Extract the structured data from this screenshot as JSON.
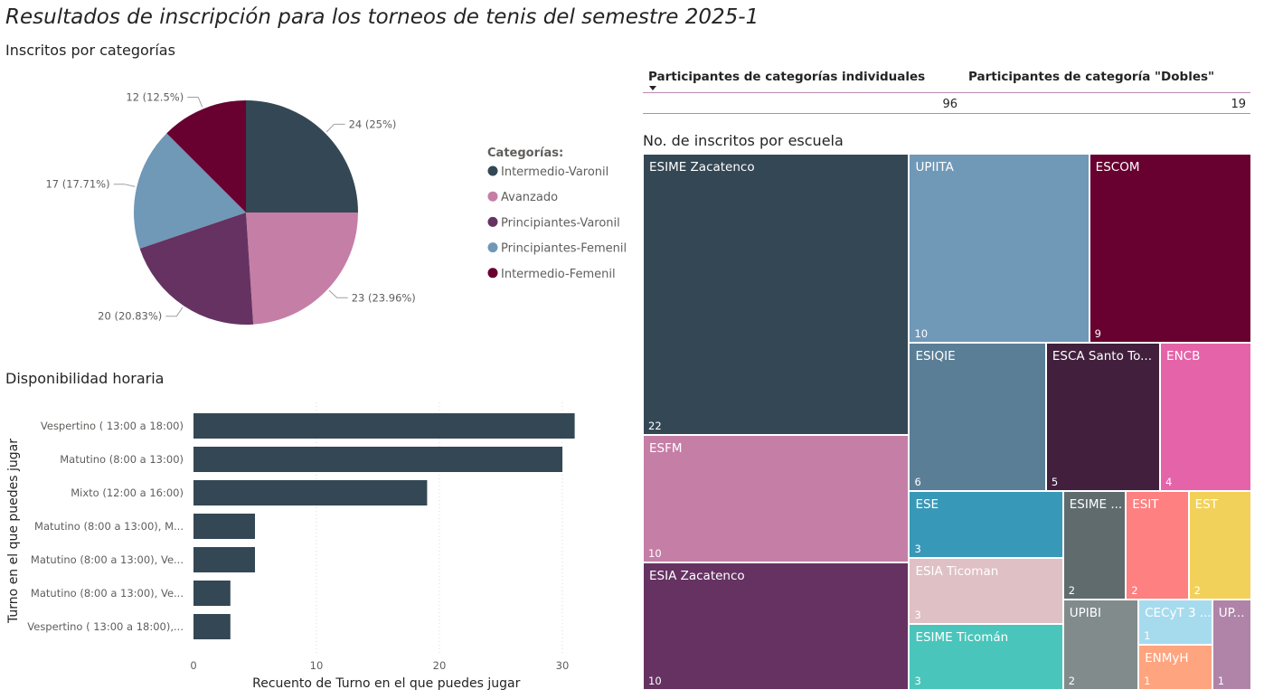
{
  "page": {
    "title": "Resultados de inscripción para los torneos de tenis del semestre 2025-1"
  },
  "cards": {
    "individual_label": "Participantes de categorías individuales",
    "individual_value": "96",
    "dobles_label": "Participantes de categoría \"Dobles\"",
    "dobles_value": "19"
  },
  "chart_data": [
    {
      "type": "pie",
      "title": "Inscritos por categorías",
      "legend_title": "Categorías:",
      "legend_position": "right",
      "slices": [
        {
          "name": "Intermedio-Varonil",
          "value": 24,
          "label": "24 (25%)",
          "color": "#344754"
        },
        {
          "name": "Avanzado",
          "value": 23,
          "label": "23 (23.96%)",
          "color": "#c57ea6"
        },
        {
          "name": "Principiantes-Varonil",
          "value": 20,
          "label": "20 (20.83%)",
          "color": "#653262"
        },
        {
          "name": "Principiantes-Femenil",
          "value": 17,
          "label": "17 (17.71%)",
          "color": "#7098b7"
        },
        {
          "name": "Intermedio-Femenil",
          "value": 12,
          "label": "12 (12.5%)",
          "color": "#680030"
        }
      ]
    },
    {
      "type": "bar",
      "orientation": "horizontal",
      "title": "Disponibilidad horaria",
      "xlabel": "Recuento de Turno en el que puedes jugar",
      "ylabel": "Turno en el que puedes jugar",
      "xlim": [
        0,
        32
      ],
      "xticks": [
        "0",
        "10",
        "20",
        "30"
      ],
      "grid": true,
      "color": "#344754",
      "categories": [
        "Vespertino ( 13:00 a 18:00)",
        "Matutino (8:00 a 13:00)",
        "Mixto (12:00 a 16:00)",
        "Matutino (8:00 a 13:00), M...",
        "Matutino (8:00 a 13:00), Ve...",
        "Matutino (8:00 a 13:00), Ve...",
        "Vespertino ( 13:00 a 18:00),..."
      ],
      "values": [
        31,
        30,
        19,
        5,
        5,
        3,
        3
      ]
    },
    {
      "type": "treemap",
      "title": "No. de inscritos por escuela",
      "items": [
        {
          "name": "ESIME Zacatenco",
          "value": 22,
          "color": "#344754"
        },
        {
          "name": "UPIITA",
          "value": 10,
          "color": "#7098b7"
        },
        {
          "name": "ESCOM",
          "value": 9,
          "color": "#680030"
        },
        {
          "name": "ESFM",
          "value": 10,
          "color": "#c57ea6"
        },
        {
          "name": "ESIQIE",
          "value": 6,
          "color": "#5b7e97"
        },
        {
          "name": "ESCA Santo To...",
          "value": 5,
          "color": "#42203d"
        },
        {
          "name": "ENCB",
          "value": 4,
          "color": "#e563a9"
        },
        {
          "name": "ESIA Zacatenco",
          "value": 10,
          "color": "#653262"
        },
        {
          "name": "ESE",
          "value": 3,
          "color": "#3898b8"
        },
        {
          "name": "ESIME ...",
          "value": 2,
          "color": "#606b6e"
        },
        {
          "name": "ESIT",
          "value": 2,
          "color": "#fe8080"
        },
        {
          "name": "EST",
          "value": 2,
          "color": "#f2d15a"
        },
        {
          "name": "ESIA Ticoman",
          "value": 3,
          "color": "#dfc0c4"
        },
        {
          "name": "UPIBI",
          "value": 2,
          "color": "#818b8c"
        },
        {
          "name": "CECyT 3 ...",
          "value": 1,
          "color": "#a6dbee"
        },
        {
          "name": "UP...",
          "value": 1,
          "color": "#b084a8"
        },
        {
          "name": "ESIME Ticomán",
          "value": 3,
          "color": "#4ac5bb"
        },
        {
          "name": "ENMyH",
          "value": 1,
          "color": "#fea47f"
        }
      ]
    }
  ]
}
